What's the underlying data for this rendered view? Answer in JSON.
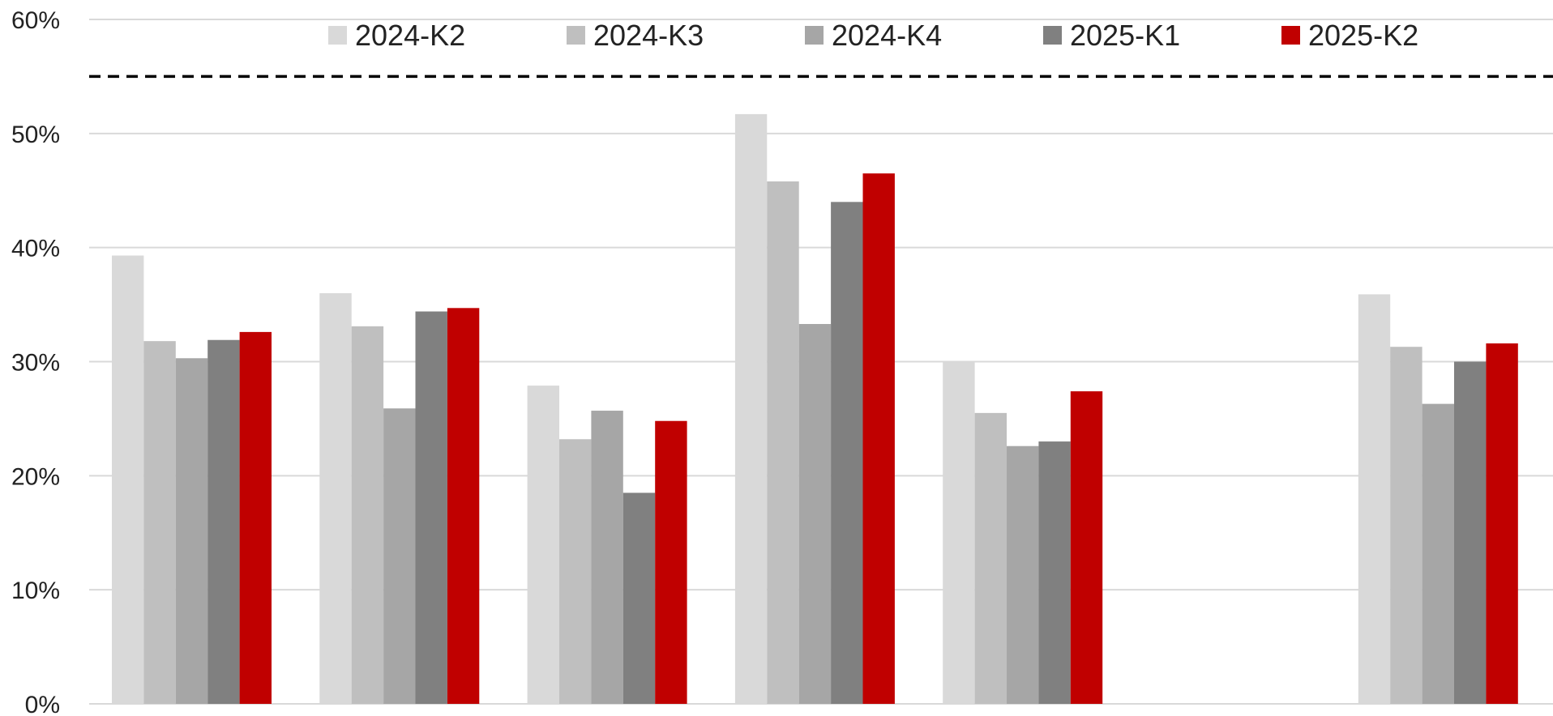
{
  "chart_data": {
    "type": "bar",
    "categories": [
      "",
      "",
      "",
      "",
      "",
      "",
      ""
    ],
    "series": [
      {
        "name": "2024-K2",
        "color": "#d9d9d9",
        "values": [
          39.3,
          36.0,
          27.9,
          51.7,
          30.0,
          null,
          35.9
        ]
      },
      {
        "name": "2024-K3",
        "color": "#bfbfbf",
        "values": [
          31.8,
          33.1,
          23.2,
          45.8,
          25.5,
          null,
          31.3
        ]
      },
      {
        "name": "2024-K4",
        "color": "#a6a6a6",
        "values": [
          30.3,
          25.9,
          25.7,
          33.3,
          22.6,
          null,
          26.3
        ]
      },
      {
        "name": "2025-K1",
        "color": "#808080",
        "values": [
          31.9,
          34.4,
          18.5,
          44.0,
          23.0,
          null,
          30.0
        ]
      },
      {
        "name": "2025-K2",
        "color": "#c00000",
        "values": [
          32.6,
          34.7,
          24.8,
          46.5,
          27.4,
          null,
          31.6
        ]
      }
    ],
    "ylim": [
      0,
      60
    ],
    "y_ticks": [
      "0%",
      "10%",
      "20%",
      "30%",
      "40%",
      "50%",
      "60%"
    ],
    "reference_line": {
      "value": 55,
      "style": "dashed",
      "color": "#000000"
    },
    "grid": true,
    "legend_position": "top",
    "title": "",
    "xlabel": "",
    "ylabel": ""
  }
}
